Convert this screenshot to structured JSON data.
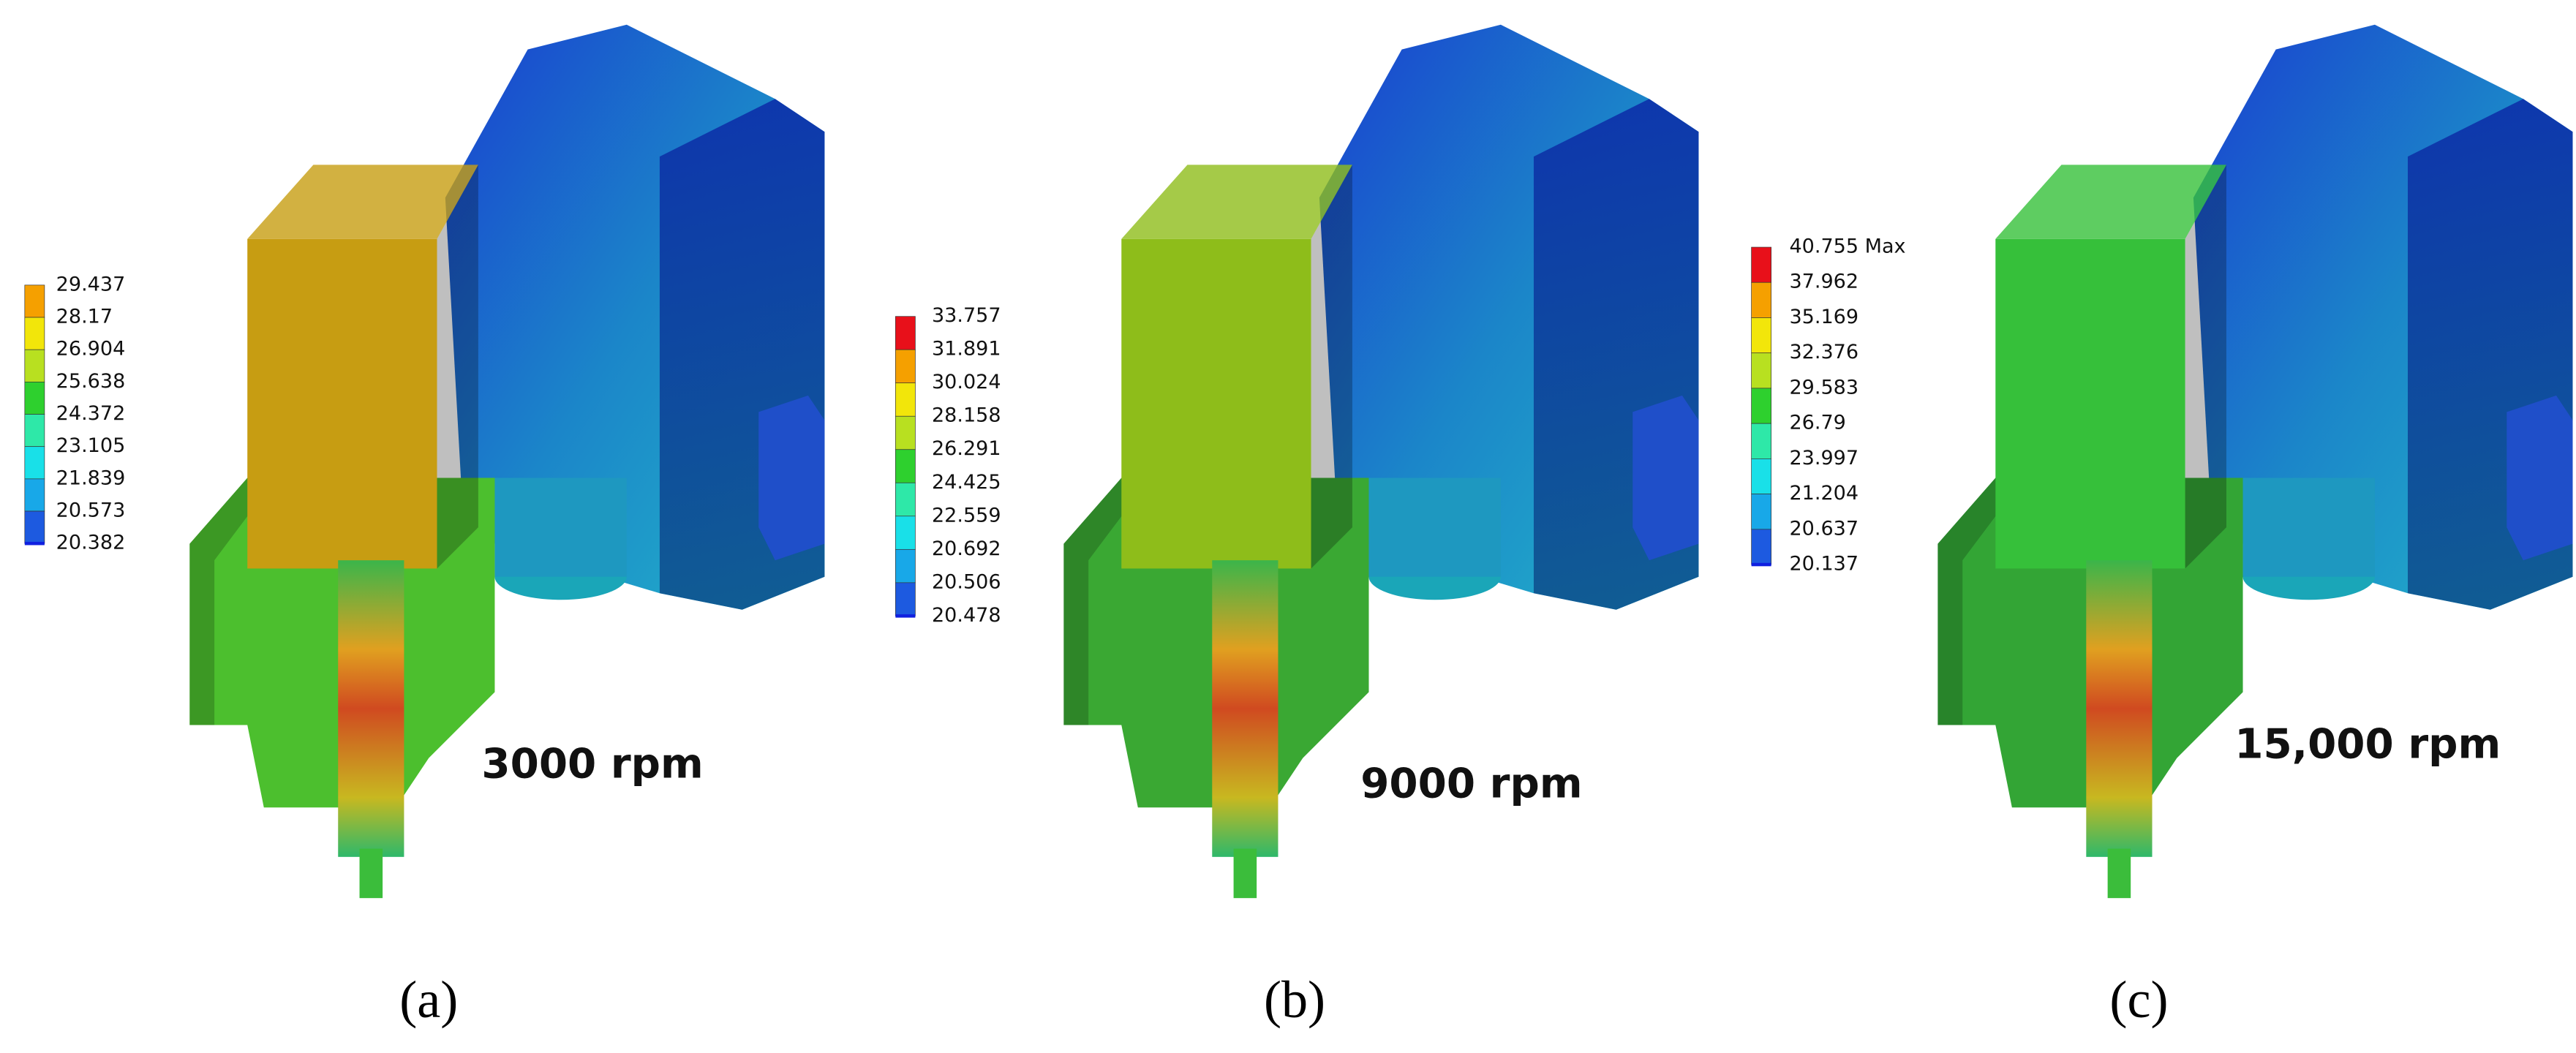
{
  "panels": [
    {
      "legend": [
        "29.437",
        "28.17",
        "26.904",
        "25.638",
        "24.372",
        "23.105",
        "21.839",
        "20.573",
        "20.382"
      ],
      "speed": "3000 rpm",
      "label": "(a)"
    },
    {
      "legend": [
        "33.757",
        "31.891",
        "30.024",
        "28.158",
        "26.291",
        "24.425",
        "22.559",
        "20.692",
        "20.506",
        "20.478"
      ],
      "speed": "9000 rpm",
      "label": "(b)"
    },
    {
      "legend": [
        "40.755 Max",
        "37.962",
        "35.169",
        "32.376",
        "29.583",
        "26.79",
        "23.997",
        "21.204",
        "20.637",
        "20.137"
      ],
      "speed": "15,000 rpm",
      "label": "(c)"
    }
  ]
}
